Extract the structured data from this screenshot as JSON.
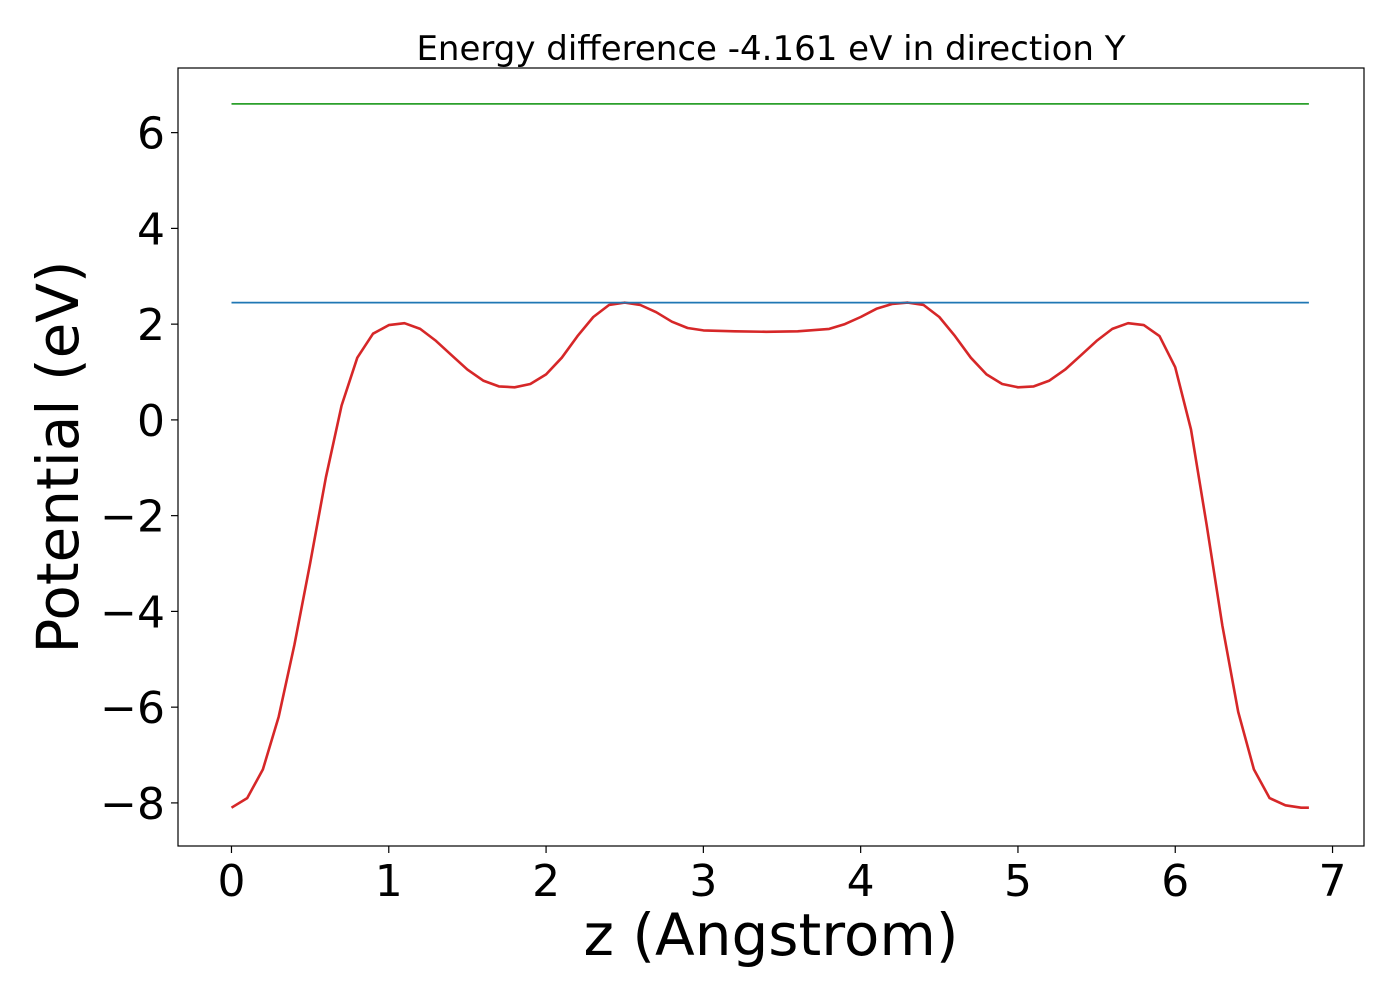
{
  "chart_data": {
    "type": "line",
    "title": "Energy difference -4.161 eV in direction Y",
    "xlabel": "z (Angstrom)",
    "ylabel": "Potential (eV)",
    "xlim": [
      -0.34,
      7.2
    ],
    "ylim": [
      -8.9,
      7.35
    ],
    "x_ticks": [
      0,
      1,
      2,
      3,
      4,
      5,
      6,
      7
    ],
    "x_tick_labels": [
      "0",
      "1",
      "2",
      "3",
      "4",
      "5",
      "6",
      "7"
    ],
    "y_ticks": [
      -8,
      -6,
      -4,
      -2,
      0,
      2,
      4,
      6
    ],
    "y_tick_labels": [
      "−8",
      "−6",
      "−4",
      "−2",
      "0",
      "2",
      "4",
      "6"
    ],
    "grid": false,
    "series": [
      {
        "color": "#d62728",
        "x": [
          0.0,
          0.1,
          0.2,
          0.3,
          0.4,
          0.5,
          0.6,
          0.7,
          0.8,
          0.9,
          1.0,
          1.1,
          1.2,
          1.3,
          1.4,
          1.5,
          1.6,
          1.7,
          1.8,
          1.9,
          2.0,
          2.1,
          2.2,
          2.3,
          2.4,
          2.5,
          2.6,
          2.7,
          2.8,
          2.9,
          3.0,
          3.2,
          3.4,
          3.6,
          3.8,
          3.9,
          4.0,
          4.1,
          4.2,
          4.3,
          4.4,
          4.5,
          4.6,
          4.7,
          4.8,
          4.9,
          5.0,
          5.1,
          5.2,
          5.3,
          5.4,
          5.5,
          5.6,
          5.7,
          5.8,
          5.9,
          6.0,
          6.1,
          6.2,
          6.3,
          6.4,
          6.5,
          6.6,
          6.7,
          6.8,
          6.85
        ],
        "y": [
          -8.1,
          -7.9,
          -7.3,
          -6.2,
          -4.7,
          -3.0,
          -1.2,
          0.3,
          1.3,
          1.8,
          1.98,
          2.02,
          1.9,
          1.65,
          1.35,
          1.05,
          0.82,
          0.7,
          0.68,
          0.75,
          0.95,
          1.3,
          1.75,
          2.15,
          2.4,
          2.45,
          2.4,
          2.25,
          2.05,
          1.92,
          1.87,
          1.85,
          1.84,
          1.85,
          1.9,
          2.0,
          2.15,
          2.32,
          2.42,
          2.45,
          2.4,
          2.15,
          1.75,
          1.3,
          0.95,
          0.75,
          0.68,
          0.7,
          0.82,
          1.05,
          1.35,
          1.65,
          1.9,
          2.02,
          1.98,
          1.75,
          1.1,
          -0.2,
          -2.2,
          -4.3,
          -6.1,
          -7.3,
          -7.9,
          -8.05,
          -8.1,
          -8.1
        ]
      },
      {
        "color": "#1f77b4",
        "x": [
          0.0,
          6.85
        ],
        "y": [
          2.45,
          2.45
        ]
      },
      {
        "color": "#2ca02c",
        "x": [
          0.0,
          6.85
        ],
        "y": [
          6.6,
          6.6
        ]
      }
    ]
  }
}
